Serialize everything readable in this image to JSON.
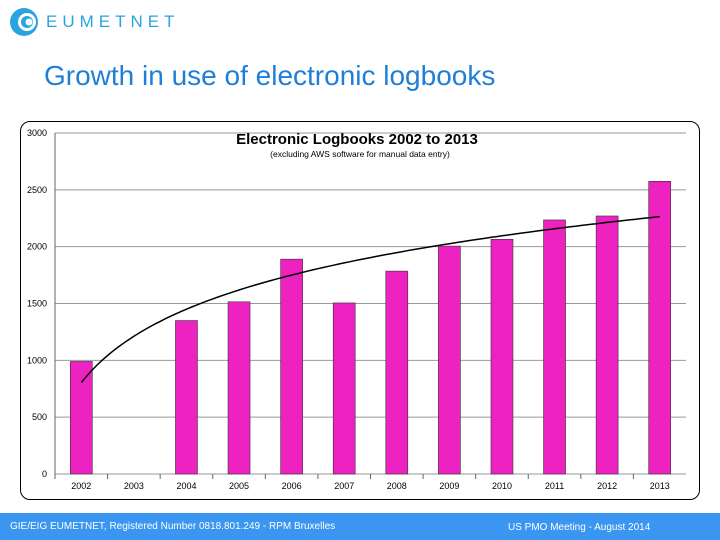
{
  "brand": {
    "name": "EUMETNET",
    "color": "#2aa3e0"
  },
  "slide": {
    "title": "Growth in use of electronic logbooks"
  },
  "footer": {
    "left": "GIE/EIG EUMETNET, Registered Number 0818.801.249 - RPM Bruxelles",
    "right": "US PMO  Meeting -  August 2014",
    "color": "#3a96f0"
  },
  "chart_data": {
    "type": "bar",
    "title": "Electronic Logbooks 2002 to 2013",
    "subtitle": "(excluding AWS software for manual data entry)",
    "categories": [
      "2002",
      "2003",
      "2004",
      "2005",
      "2006",
      "2007",
      "2008",
      "2009",
      "2010",
      "2011",
      "2012",
      "2013"
    ],
    "values": [
      990,
      null,
      1350,
      1515,
      1890,
      1505,
      1785,
      2005,
      2065,
      2235,
      2270,
      2575
    ],
    "ylim": [
      0,
      3000
    ],
    "yticks": [
      0,
      500,
      1000,
      1500,
      2000,
      2500,
      3000
    ],
    "grid": true,
    "bar_color": "#ee22c0",
    "trendline": {
      "type": "logarithmic",
      "color": "#000000"
    }
  }
}
